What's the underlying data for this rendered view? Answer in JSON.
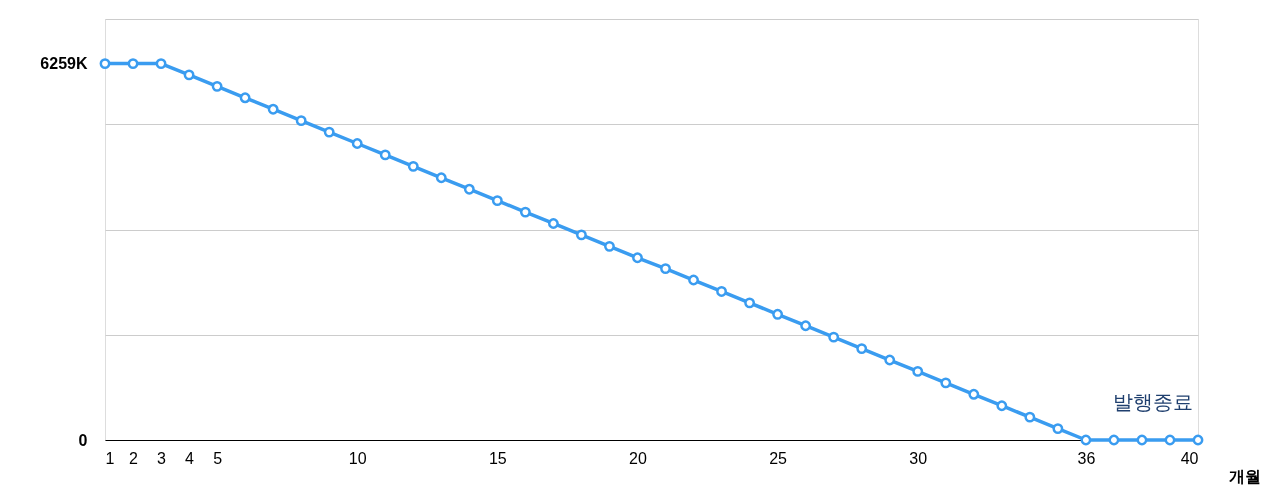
{
  "chart_data": {
    "type": "line",
    "x": [
      1,
      2,
      3,
      4,
      5,
      6,
      7,
      8,
      9,
      10,
      11,
      12,
      13,
      14,
      15,
      16,
      17,
      18,
      19,
      20,
      21,
      22,
      23,
      24,
      25,
      26,
      27,
      28,
      29,
      30,
      31,
      32,
      33,
      34,
      35,
      36,
      37,
      38,
      39,
      40
    ],
    "series": [
      {
        "color": "#3a9cf0",
        "values": [
          6259,
          6259,
          6259,
          6070,
          5880,
          5690,
          5500,
          5310,
          5120,
          4930,
          4740,
          4550,
          4360,
          4170,
          3980,
          3790,
          3600,
          3410,
          3220,
          3030,
          2850,
          2660,
          2470,
          2280,
          2090,
          1900,
          1710,
          1520,
          1330,
          1140,
          950,
          760,
          570,
          380,
          190,
          0,
          0,
          0,
          0,
          0
        ]
      }
    ],
    "xlabel": "개월",
    "xlim": [
      1,
      40
    ],
    "xticks": [
      1,
      2,
      3,
      4,
      5,
      10,
      15,
      20,
      25,
      30,
      36,
      40
    ],
    "ylim": [
      0,
      7000
    ],
    "yticks": [
      0,
      {
        "value": 1750,
        "label": null
      },
      {
        "value": 3500,
        "label": null
      },
      {
        "value": 5250,
        "label": null
      },
      {
        "value": 6259,
        "label": "6259K"
      },
      {
        "value": 7000,
        "label": null
      }
    ],
    "grid": "y",
    "marker": "circle",
    "line_style": "solid",
    "annotations": [
      "발행종료"
    ]
  }
}
